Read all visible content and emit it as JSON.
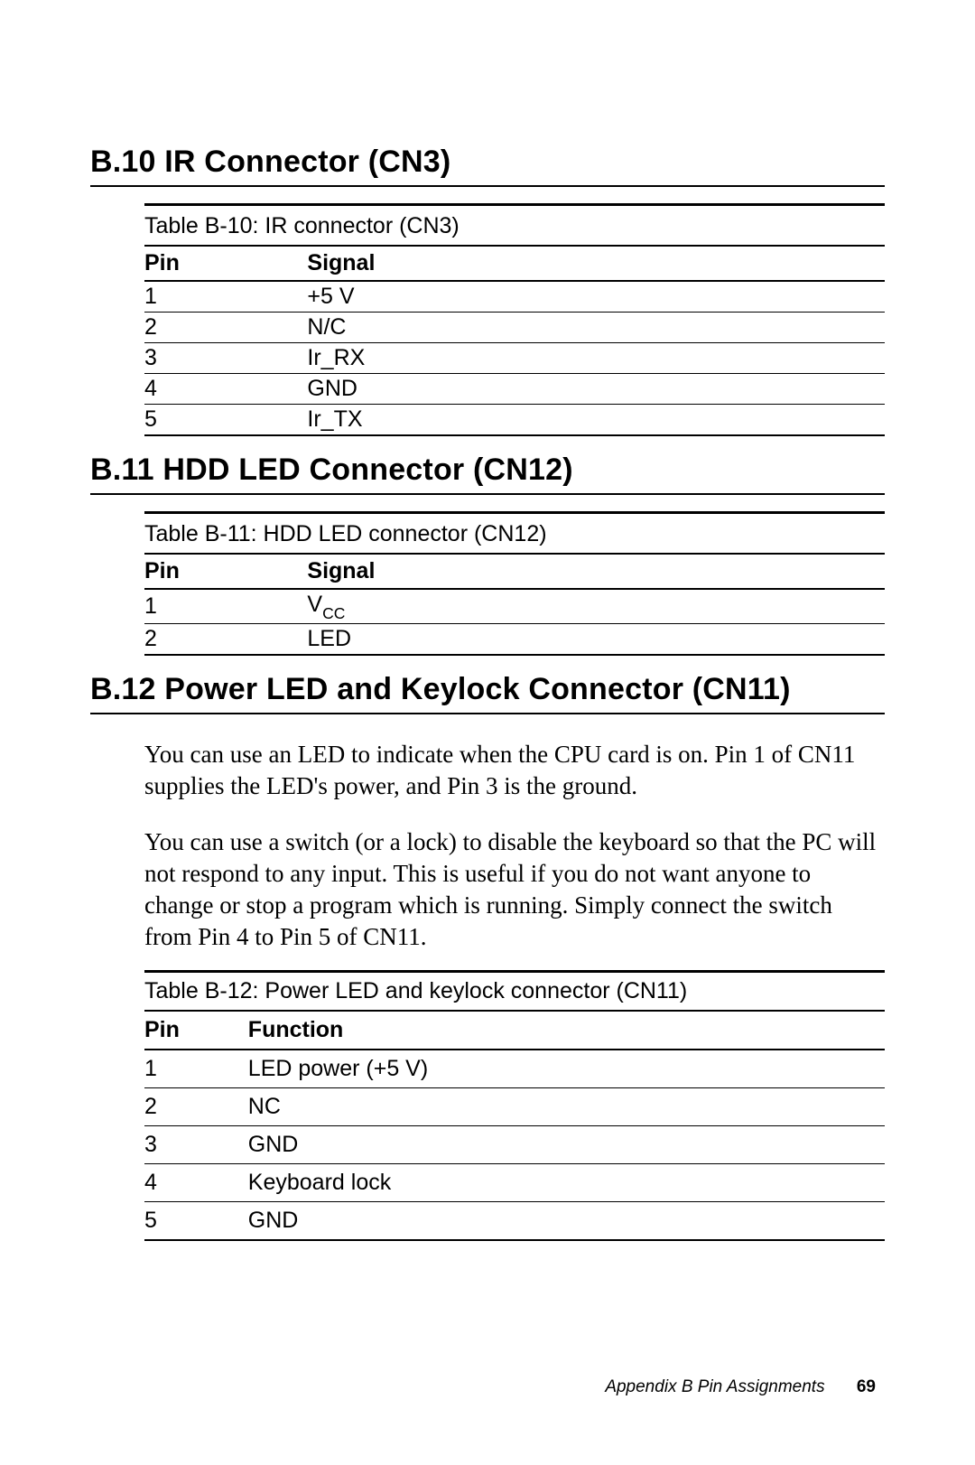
{
  "sections": {
    "s1": {
      "heading": "B.10  IR Connector (CN3)",
      "table": {
        "caption": "Table B-10: IR connector (CN3)",
        "headers": {
          "col1": "Pin",
          "col2": "Signal"
        },
        "rows": [
          {
            "pin": "1",
            "val": "+5 V"
          },
          {
            "pin": "2",
            "val": "N/C"
          },
          {
            "pin": "3",
            "val": "Ir_RX"
          },
          {
            "pin": "4",
            "val": "GND"
          },
          {
            "pin": "5",
            "val": "Ir_TX"
          }
        ]
      }
    },
    "s2": {
      "heading": "B.11  HDD LED Connector (CN12)",
      "table": {
        "caption": "Table B-11: HDD LED connector (CN12)",
        "headers": {
          "col1": "Pin",
          "col2": "Signal"
        },
        "rows": [
          {
            "pin": "1",
            "val": "V",
            "sub": "CC"
          },
          {
            "pin": "2",
            "val": "LED"
          }
        ]
      }
    },
    "s3": {
      "heading": "B.12  Power LED and Keylock Connector (CN11)",
      "para1": "You can use an LED to indicate when the CPU card is on. Pin 1 of CN11 supplies the LED's power, and Pin 3 is the ground.",
      "para2": "You can use a switch (or a lock) to disable the keyboard so that the PC will not respond to any input. This is useful if  you do not want anyone to change or stop a  program which is running. Simply connect the switch from Pin 4 to Pin 5 of CN11.",
      "table": {
        "caption": "Table B-12: Power LED and keylock connector (CN11)",
        "headers": {
          "col1": "Pin",
          "col2": "Function"
        },
        "rows": [
          {
            "pin": "1",
            "val": "LED power (+5 V)"
          },
          {
            "pin": "2",
            "val": "NC"
          },
          {
            "pin": "3",
            "val": "GND"
          },
          {
            "pin": "4",
            "val": "Keyboard lock"
          },
          {
            "pin": "5",
            "val": "GND"
          }
        ]
      }
    }
  },
  "footer": {
    "text": "Appendix B  Pin Assignments",
    "page": "69"
  }
}
